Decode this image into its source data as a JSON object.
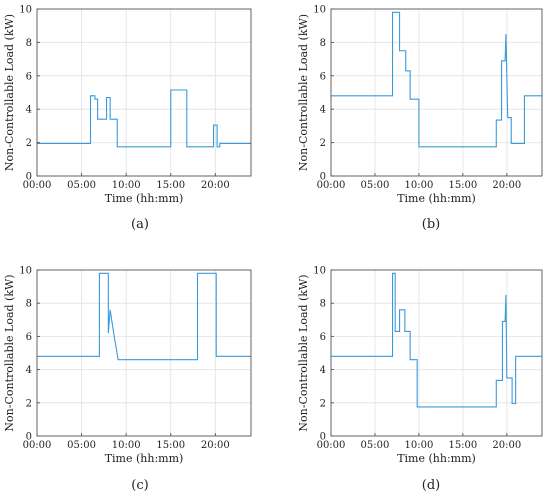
{
  "chart_data": [
    {
      "type": "line",
      "panel_label": "(a)",
      "xlabel": "Time (hh:mm)",
      "ylabel": "Non-Controllable Load (kW)",
      "x_tick_labels": [
        "00:00",
        "05:00",
        "10:00",
        "15:00",
        "20:00"
      ],
      "x_ticks_hours": [
        0,
        5,
        10,
        15,
        20
      ],
      "xlim_hours": [
        0,
        24
      ],
      "ylim": [
        0,
        10
      ],
      "y_ticks": [
        0,
        2,
        4,
        6,
        8,
        10
      ],
      "grid": true,
      "series": [
        {
          "color": "#3a9ad9",
          "x_hours": [
            0,
            6.0,
            6.0,
            6.5,
            6.5,
            6.8,
            6.8,
            7.8,
            7.8,
            8.2,
            8.2,
            8.5,
            8.5,
            9.0,
            9.0,
            15.0,
            15.0,
            16.8,
            16.8,
            19.8,
            19.8,
            20.2,
            20.2,
            20.5,
            20.5,
            24
          ],
          "y": [
            1.95,
            1.95,
            4.8,
            4.8,
            4.6,
            4.6,
            3.4,
            3.4,
            4.7,
            4.7,
            3.4,
            3.4,
            3.4,
            3.4,
            1.75,
            1.75,
            5.15,
            5.15,
            1.75,
            1.75,
            3.05,
            3.05,
            1.75,
            1.75,
            1.95,
            1.95
          ]
        }
      ]
    },
    {
      "type": "line",
      "panel_label": "(b)",
      "xlabel": "Time (hh:mm)",
      "ylabel": "Non-Controllable Load (kW)",
      "x_tick_labels": [
        "00:00",
        "05:00",
        "10:00",
        "15:00",
        "20:00"
      ],
      "x_ticks_hours": [
        0,
        5,
        10,
        15,
        20
      ],
      "xlim_hours": [
        0,
        24
      ],
      "ylim": [
        0,
        10
      ],
      "y_ticks": [
        0,
        2,
        4,
        6,
        8,
        10
      ],
      "grid": true,
      "series": [
        {
          "color": "#3a9ad9",
          "x_hours": [
            0,
            7.0,
            7.0,
            7.8,
            7.8,
            8.5,
            8.5,
            9.0,
            9.0,
            9.5,
            9.5,
            10.0,
            10.0,
            18.8,
            18.8,
            19.4,
            19.4,
            19.8,
            19.9,
            20.1,
            20.2,
            20.2,
            20.5,
            20.5,
            22.0,
            22.0,
            24
          ],
          "y": [
            4.8,
            4.8,
            9.8,
            9.8,
            7.5,
            7.5,
            6.3,
            6.3,
            4.6,
            4.6,
            4.6,
            4.6,
            1.75,
            1.75,
            3.35,
            3.35,
            6.9,
            6.9,
            8.5,
            3.5,
            3.5,
            3.5,
            3.5,
            1.95,
            1.95,
            4.8,
            4.8
          ]
        }
      ]
    },
    {
      "type": "line",
      "panel_label": "(c)",
      "xlabel": "Time (hh:mm)",
      "ylabel": "Non-Controllable Load (kW)",
      "x_tick_labels": [
        "00:00",
        "05:00",
        "10:00",
        "15:00",
        "20:00"
      ],
      "x_ticks_hours": [
        0,
        5,
        10,
        15,
        20
      ],
      "xlim_hours": [
        0,
        24
      ],
      "ylim": [
        0,
        10
      ],
      "y_ticks": [
        0,
        2,
        4,
        6,
        8,
        10
      ],
      "grid": true,
      "series": [
        {
          "color": "#3a9ad9",
          "x_hours": [
            0,
            7.0,
            7.0,
            8.0,
            8.0,
            8.2,
            8.2,
            8.6,
            8.6,
            9.1,
            9.1,
            18.0,
            18.0,
            20.1,
            20.1,
            24
          ],
          "y": [
            4.8,
            4.8,
            9.8,
            9.8,
            6.2,
            7.6,
            7.6,
            6.2,
            6.2,
            4.6,
            4.6,
            4.6,
            9.8,
            9.8,
            4.8,
            4.8
          ]
        }
      ]
    },
    {
      "type": "line",
      "panel_label": "(d)",
      "xlabel": "Time (hh:mm)",
      "ylabel": "Non-Controllable Load (kW)",
      "x_tick_labels": [
        "00:00",
        "05:00",
        "10:00",
        "15:00",
        "20:00"
      ],
      "x_ticks_hours": [
        0,
        5,
        10,
        15,
        20
      ],
      "xlim_hours": [
        0,
        24
      ],
      "ylim": [
        0,
        10
      ],
      "y_ticks": [
        0,
        2,
        4,
        6,
        8,
        10
      ],
      "grid": true,
      "series": [
        {
          "color": "#3a9ad9",
          "x_hours": [
            0,
            7.0,
            7.0,
            7.3,
            7.3,
            7.8,
            7.8,
            8.4,
            8.4,
            9.0,
            9.0,
            9.8,
            9.8,
            18.8,
            18.8,
            19.5,
            19.5,
            19.8,
            19.9,
            20.0,
            20.1,
            20.6,
            20.6,
            21.0,
            21.0,
            24
          ],
          "y": [
            4.8,
            4.8,
            9.8,
            9.8,
            6.3,
            6.3,
            7.6,
            7.6,
            6.3,
            6.3,
            4.6,
            4.6,
            1.75,
            1.75,
            3.35,
            3.35,
            6.9,
            6.9,
            8.5,
            3.5,
            3.5,
            3.5,
            1.95,
            1.95,
            4.8,
            4.8
          ]
        }
      ]
    }
  ]
}
